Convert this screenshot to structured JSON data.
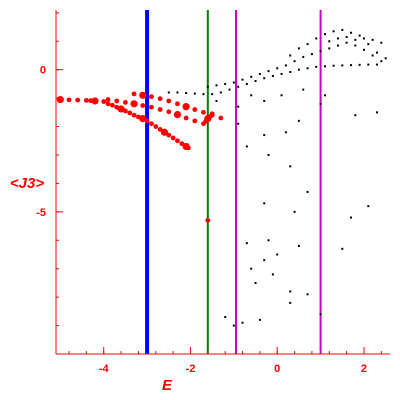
{
  "chart_data": {
    "type": "scatter",
    "xlabel": "E",
    "ylabel": "<J3>",
    "xlim": [
      -5.1,
      2.6
    ],
    "ylim": [
      -10,
      2.1
    ],
    "x_ticks": [
      -4,
      -2,
      0,
      2
    ],
    "y_ticks": [
      0,
      -5
    ],
    "x_minor_step": 0.4,
    "y_minor_step": 1,
    "grid": false,
    "axis_color": "#ff0000",
    "vertical_lines": [
      {
        "x": -3.0,
        "color": "#0000ff",
        "style": "thick"
      },
      {
        "x": -1.6,
        "color": "#008000",
        "style": "medium"
      },
      {
        "x": -0.95,
        "color": "#cc00cc",
        "style": "medium"
      },
      {
        "x": 1.0,
        "color": "#cc00cc",
        "style": "medium"
      }
    ],
    "series": [
      {
        "color": "#ff0000",
        "marker": "filled-circle",
        "points": [
          [
            -5.0,
            -1.05
          ],
          [
            -4.8,
            -1.06
          ],
          [
            -4.6,
            -1.07
          ],
          [
            -4.4,
            -1.08
          ],
          [
            -4.3,
            -1.09
          ],
          [
            -4.2,
            -1.1
          ],
          [
            -4.0,
            -1.12
          ],
          [
            -3.9,
            -1.2
          ],
          [
            -3.8,
            -1.25
          ],
          [
            -3.7,
            -1.32
          ],
          [
            -3.6,
            -1.38
          ],
          [
            -3.5,
            -1.45
          ],
          [
            -3.4,
            -1.52
          ],
          [
            -3.3,
            -1.6
          ],
          [
            -3.2,
            -1.66
          ],
          [
            -3.1,
            -1.72
          ],
          [
            -3.0,
            -1.8
          ],
          [
            -2.9,
            -1.9
          ],
          [
            -2.8,
            -2.0
          ],
          [
            -2.7,
            -2.1
          ],
          [
            -2.6,
            -2.2
          ],
          [
            -2.5,
            -2.3
          ],
          [
            -2.4,
            -2.4
          ],
          [
            -2.3,
            -2.5
          ],
          [
            -2.2,
            -2.6
          ],
          [
            -2.1,
            -2.7
          ],
          [
            -2.05,
            -2.75
          ],
          [
            -3.9,
            -1.05
          ],
          [
            -3.7,
            -1.1
          ],
          [
            -3.5,
            -1.15
          ],
          [
            -3.3,
            -1.2
          ],
          [
            -3.1,
            -1.26
          ],
          [
            -2.9,
            -1.32
          ],
          [
            -2.7,
            -1.4
          ],
          [
            -2.5,
            -1.48
          ],
          [
            -2.3,
            -1.58
          ],
          [
            -2.1,
            -1.7
          ],
          [
            -1.9,
            -1.8
          ],
          [
            -1.7,
            -1.9
          ],
          [
            -3.3,
            -0.85
          ],
          [
            -3.1,
            -0.9
          ],
          [
            -2.9,
            -0.95
          ],
          [
            -2.7,
            -1.02
          ],
          [
            -2.5,
            -1.1
          ],
          [
            -2.3,
            -1.2
          ],
          [
            -2.1,
            -1.3
          ],
          [
            -1.9,
            -1.4
          ],
          [
            -1.7,
            -1.5
          ],
          [
            -1.5,
            -1.6
          ],
          [
            -1.3,
            -1.7
          ],
          [
            -1.6,
            -1.72
          ],
          [
            -1.65,
            -1.82
          ],
          [
            -1.55,
            -1.65
          ],
          [
            -1.5,
            -1.55
          ],
          [
            -1.6,
            -5.3
          ]
        ]
      },
      {
        "color": "#000000",
        "marker": "dot",
        "points": [
          [
            -2.5,
            -0.8
          ],
          [
            -2.3,
            -0.8
          ],
          [
            -2.1,
            -0.82
          ],
          [
            -1.9,
            -0.84
          ],
          [
            -1.7,
            -0.86
          ],
          [
            -1.5,
            -0.86
          ],
          [
            -1.3,
            -0.8
          ],
          [
            -1.1,
            -0.7
          ],
          [
            -0.9,
            -0.6
          ],
          [
            -0.7,
            -0.5
          ],
          [
            -0.5,
            -0.4
          ],
          [
            -0.3,
            -0.3
          ],
          [
            -0.1,
            -0.22
          ],
          [
            0.1,
            -0.15
          ],
          [
            0.3,
            -0.08
          ],
          [
            0.5,
            0.0
          ],
          [
            0.7,
            0.05
          ],
          [
            0.9,
            0.1
          ],
          [
            1.1,
            0.12
          ],
          [
            1.3,
            0.14
          ],
          [
            1.5,
            0.15
          ],
          [
            1.7,
            0.16
          ],
          [
            1.9,
            0.17
          ],
          [
            2.1,
            0.18
          ],
          [
            2.3,
            0.18
          ],
          [
            -1.6,
            -0.6
          ],
          [
            -1.4,
            -0.55
          ],
          [
            -1.2,
            -0.5
          ],
          [
            -1.0,
            -0.45
          ],
          [
            -0.8,
            -0.35
          ],
          [
            -0.6,
            -0.25
          ],
          [
            -0.4,
            -0.15
          ],
          [
            -0.2,
            -0.05
          ],
          [
            0.0,
            0.05
          ],
          [
            0.2,
            0.15
          ],
          [
            0.4,
            0.3
          ],
          [
            0.6,
            0.45
          ],
          [
            0.8,
            0.55
          ],
          [
            1.0,
            0.65
          ],
          [
            1.2,
            0.75
          ],
          [
            1.4,
            0.85
          ],
          [
            1.6,
            0.95
          ],
          [
            1.8,
            1.05
          ],
          [
            2.0,
            1.1
          ],
          [
            2.2,
            1.05
          ],
          [
            2.4,
            0.95
          ],
          [
            0.3,
            0.5
          ],
          [
            0.5,
            0.75
          ],
          [
            0.7,
            0.9
          ],
          [
            0.9,
            1.1
          ],
          [
            1.1,
            1.25
          ],
          [
            1.3,
            1.35
          ],
          [
            1.5,
            1.4
          ],
          [
            1.7,
            1.3
          ],
          [
            1.9,
            1.2
          ],
          [
            2.1,
            0.9
          ],
          [
            2.3,
            0.6
          ],
          [
            2.5,
            0.4
          ],
          [
            1.2,
            1.0
          ],
          [
            1.4,
            1.1
          ],
          [
            1.6,
            1.15
          ],
          [
            1.8,
            0.85
          ],
          [
            2.0,
            0.7
          ],
          [
            2.2,
            0.5
          ],
          [
            2.4,
            0.3
          ],
          [
            -0.6,
            -0.9
          ],
          [
            -0.9,
            -1.3
          ],
          [
            -1.4,
            -1.1
          ],
          [
            -0.3,
            -1.1
          ],
          [
            0.1,
            -0.9
          ],
          [
            0.6,
            -0.7
          ],
          [
            1.1,
            -0.9
          ],
          [
            1.8,
            -1.6
          ],
          [
            2.3,
            -1.5
          ],
          [
            -0.9,
            -1.9
          ],
          [
            -0.3,
            -2.3
          ],
          [
            -0.7,
            -2.7
          ],
          [
            0.2,
            -2.2
          ],
          [
            0.5,
            -1.8
          ],
          [
            1.0,
            -1.2
          ],
          [
            -0.2,
            -3.0
          ],
          [
            0.3,
            -3.4
          ],
          [
            0.7,
            -4.3
          ],
          [
            -0.3,
            -4.7
          ],
          [
            0.4,
            -5.0
          ],
          [
            1.7,
            -5.2
          ],
          [
            2.1,
            -4.8
          ],
          [
            -0.7,
            -6.1
          ],
          [
            -0.2,
            -6.0
          ],
          [
            0.5,
            -6.2
          ],
          [
            1.5,
            -6.3
          ],
          [
            -0.3,
            -6.7
          ],
          [
            0.0,
            -6.5
          ],
          [
            -0.1,
            -7.2
          ],
          [
            0.3,
            -7.8
          ],
          [
            -0.5,
            -7.5
          ],
          [
            0.7,
            -7.9
          ],
          [
            -0.4,
            -8.8
          ],
          [
            -0.8,
            -8.9
          ],
          [
            -1.2,
            -8.7
          ],
          [
            -1.0,
            -9.0
          ],
          [
            1.0,
            -8.6
          ],
          [
            0.3,
            -8.2
          ],
          [
            -0.6,
            -7.0
          ]
        ]
      }
    ]
  }
}
